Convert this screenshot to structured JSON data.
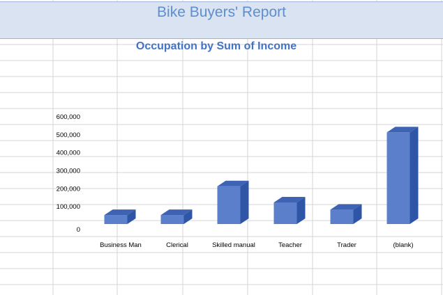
{
  "report": {
    "title": "Bike Buyers' Report"
  },
  "chart_data": {
    "type": "bar",
    "title": "Occupation by Sum of Income",
    "categories": [
      "Business Man",
      "Clerical",
      "Skilled manual",
      "Teacher",
      "Trader",
      "(blank)"
    ],
    "values": [
      50000,
      50000,
      210000,
      120000,
      80000,
      510000
    ],
    "y_ticks": [
      0,
      100000,
      200000,
      300000,
      400000,
      500000,
      600000
    ],
    "ylim": [
      0,
      600000
    ],
    "xlabel": "",
    "ylabel": "",
    "bar_color": "#5b7fcb",
    "bar_side_color": "#2f56a6",
    "bar_top_color": "#3e63b3",
    "legend": "none",
    "grid": false
  }
}
